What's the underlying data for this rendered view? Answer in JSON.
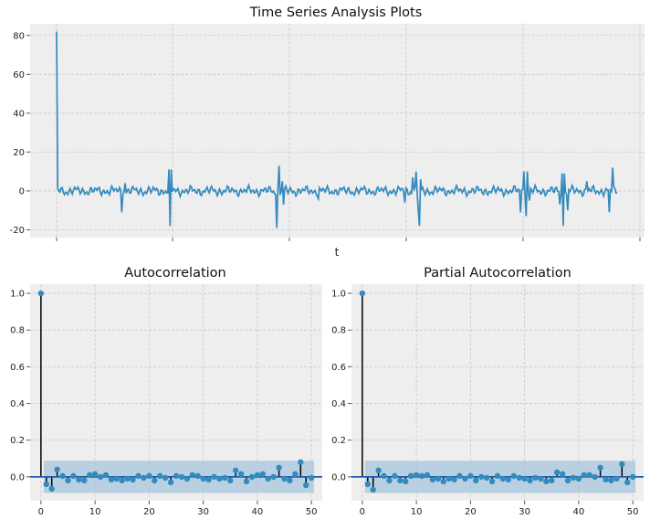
{
  "figure": {
    "title": "Time Series Analysis Plots"
  },
  "colors": {
    "line": "#348abd",
    "stem": "#000000",
    "band": "#a6c5dc",
    "zero_line": "#1f5fa8",
    "panel_bg": "#eeeeee",
    "grid": "#c8c8c8"
  },
  "chart_data": [
    {
      "type": "line",
      "title": "Time Series Analysis Plots",
      "xlabel": "t",
      "ylabel": "",
      "ylim": [
        -24,
        86
      ],
      "yticks": [
        -20,
        0,
        20,
        40,
        60,
        80
      ],
      "xtick_labels_visible": false,
      "grid": true,
      "series": [
        {
          "x_index_range": [
            0,
            499
          ],
          "spikes": [
            {
              "x": 0,
              "y": 82
            },
            {
              "x": 58,
              "y": -11
            },
            {
              "x": 61,
              "y": 4
            },
            {
              "x": 100,
              "y": 11
            },
            {
              "x": 101,
              "y": -18
            },
            {
              "x": 102,
              "y": 11
            },
            {
              "x": 196,
              "y": -19
            },
            {
              "x": 198,
              "y": 13
            },
            {
              "x": 201,
              "y": 5
            },
            {
              "x": 202,
              "y": -7
            },
            {
              "x": 233,
              "y": -4
            },
            {
              "x": 310,
              "y": -6
            },
            {
              "x": 317,
              "y": 7
            },
            {
              "x": 320,
              "y": 10
            },
            {
              "x": 322,
              "y": -10
            },
            {
              "x": 323,
              "y": -18
            },
            {
              "x": 324,
              "y": 6
            },
            {
              "x": 413,
              "y": -11
            },
            {
              "x": 416,
              "y": 10
            },
            {
              "x": 418,
              "y": -13
            },
            {
              "x": 419,
              "y": 10
            },
            {
              "x": 421,
              "y": -5
            },
            {
              "x": 448,
              "y": -7
            },
            {
              "x": 450,
              "y": 9
            },
            {
              "x": 451,
              "y": -18
            },
            {
              "x": 452,
              "y": 9
            },
            {
              "x": 455,
              "y": -10
            },
            {
              "x": 472,
              "y": 5
            },
            {
              "x": 492,
              "y": -11
            },
            {
              "x": 495,
              "y": 12
            }
          ]
        }
      ]
    },
    {
      "type": "stem",
      "title": "Autocorrelation",
      "xlim": [
        -2,
        52
      ],
      "ylim": [
        -0.13,
        1.05
      ],
      "xticks": [
        0,
        10,
        20,
        30,
        40,
        50
      ],
      "yticks": [
        0.0,
        0.2,
        0.4,
        0.6,
        0.8,
        1.0
      ],
      "confidence_band": 0.088,
      "grid": true,
      "lags": [
        0,
        1,
        2,
        3,
        4,
        5,
        6,
        7,
        8,
        9,
        10,
        11,
        12,
        13,
        14,
        15,
        16,
        17,
        18,
        19,
        20,
        21,
        22,
        23,
        24,
        25,
        26,
        27,
        28,
        29,
        30,
        31,
        32,
        33,
        34,
        35,
        36,
        37,
        38,
        39,
        40,
        41,
        42,
        43,
        44,
        45,
        46,
        47,
        48,
        49,
        50
      ],
      "values": [
        1.0,
        -0.04,
        -0.065,
        0.04,
        0.005,
        -0.02,
        0.005,
        -0.015,
        -0.02,
        0.01,
        0.015,
        0.0,
        0.01,
        -0.015,
        -0.01,
        -0.02,
        -0.01,
        -0.015,
        0.005,
        -0.005,
        0.005,
        -0.02,
        0.005,
        -0.005,
        -0.03,
        0.005,
        0.0,
        -0.01,
        0.01,
        0.005,
        -0.01,
        -0.015,
        0.0,
        -0.01,
        -0.005,
        -0.02,
        0.035,
        0.015,
        -0.025,
        0.0,
        0.01,
        0.015,
        -0.01,
        0.0,
        0.05,
        -0.01,
        -0.02,
        0.015,
        0.08,
        -0.045,
        -0.005
      ]
    },
    {
      "type": "stem",
      "title": "Partial Autocorrelation",
      "xlim": [
        -2,
        52
      ],
      "ylim": [
        -0.13,
        1.05
      ],
      "xticks": [
        0,
        10,
        20,
        30,
        40,
        50
      ],
      "yticks": [
        0.0,
        0.2,
        0.4,
        0.6,
        0.8,
        1.0
      ],
      "confidence_band": 0.088,
      "grid": true,
      "lags": [
        0,
        1,
        2,
        3,
        4,
        5,
        6,
        7,
        8,
        9,
        10,
        11,
        12,
        13,
        14,
        15,
        16,
        17,
        18,
        19,
        20,
        21,
        22,
        23,
        24,
        25,
        26,
        27,
        28,
        29,
        30,
        31,
        32,
        33,
        34,
        35,
        36,
        37,
        38,
        39,
        40,
        41,
        42,
        43,
        44,
        45,
        46,
        47,
        48,
        49,
        50
      ],
      "values": [
        1.0,
        -0.04,
        -0.07,
        0.035,
        0.005,
        -0.02,
        0.005,
        -0.02,
        -0.025,
        0.005,
        0.01,
        0.005,
        0.01,
        -0.015,
        -0.01,
        -0.025,
        -0.01,
        -0.015,
        0.005,
        -0.01,
        0.005,
        -0.02,
        0.0,
        -0.005,
        -0.025,
        0.005,
        -0.01,
        -0.015,
        0.005,
        -0.005,
        -0.01,
        -0.02,
        -0.005,
        -0.01,
        -0.025,
        -0.02,
        0.025,
        0.015,
        -0.02,
        -0.005,
        -0.01,
        0.01,
        0.01,
        0.0,
        0.05,
        -0.015,
        -0.02,
        -0.01,
        0.07,
        -0.03,
        0.0
      ]
    }
  ]
}
